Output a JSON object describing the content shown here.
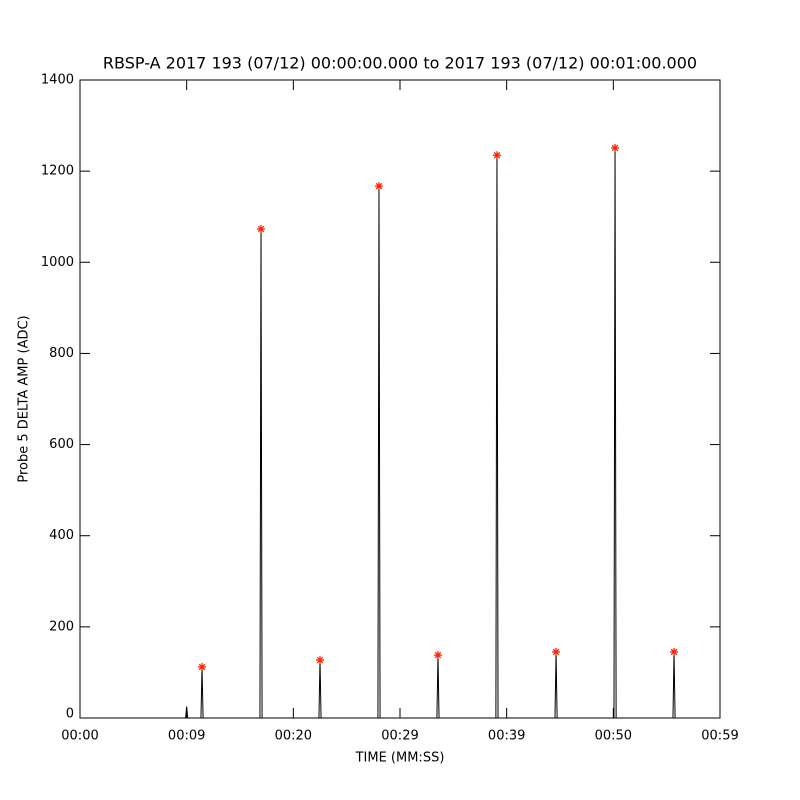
{
  "chart_data": {
    "type": "line",
    "title": "RBSP-A 2017 193 (07/12) 00:00:00.000 to 2017 193 (07/12) 00:01:00.000",
    "x_label": "TIME (MM:SS)",
    "y_label": "Probe 5 DELTA AMP (ADC)",
    "xlim": [
      0,
      60
    ],
    "xticks": [
      {
        "value": 0,
        "label": "00:00"
      },
      {
        "value": 10,
        "label": "00:09"
      },
      {
        "value": 20,
        "label": "00:20"
      },
      {
        "value": 30,
        "label": "00:29"
      },
      {
        "value": 40,
        "label": "00:39"
      },
      {
        "value": 50,
        "label": "00:50"
      },
      {
        "value": 60,
        "label": "00:59"
      }
    ],
    "ylim": [
      0,
      1400
    ],
    "yticks": [
      0,
      200,
      400,
      600,
      800,
      1000,
      1200,
      1400
    ],
    "grid": false,
    "series": [
      {
        "color": "#000000",
        "marker": "none",
        "x": [
          0,
          9.9,
          10.0,
          10.1,
          11.34,
          11.44,
          11.54,
          16.87,
          16.97,
          17.07,
          22.4,
          22.5,
          22.6,
          27.93,
          28.03,
          28.13,
          33.46,
          33.56,
          33.66,
          38.99,
          39.09,
          39.19,
          44.53,
          44.63,
          44.73,
          50.06,
          50.16,
          50.26,
          55.59,
          55.69,
          55.79,
          60
        ],
        "values": [
          0,
          0,
          25,
          0,
          0,
          112,
          0,
          0,
          1073,
          0,
          0,
          127,
          0,
          0,
          1167,
          0,
          0,
          138,
          0,
          0,
          1235,
          0,
          0,
          145,
          0,
          0,
          1251,
          0,
          0,
          145,
          0,
          0
        ]
      },
      {
        "color": "#ff2200",
        "marker": "asterisk",
        "x": [
          11.44,
          16.97,
          22.5,
          28.03,
          33.56,
          39.09,
          44.63,
          50.16,
          55.69
        ],
        "values": [
          112,
          1073,
          127,
          1167,
          138,
          1235,
          145,
          1251,
          145
        ]
      }
    ]
  }
}
